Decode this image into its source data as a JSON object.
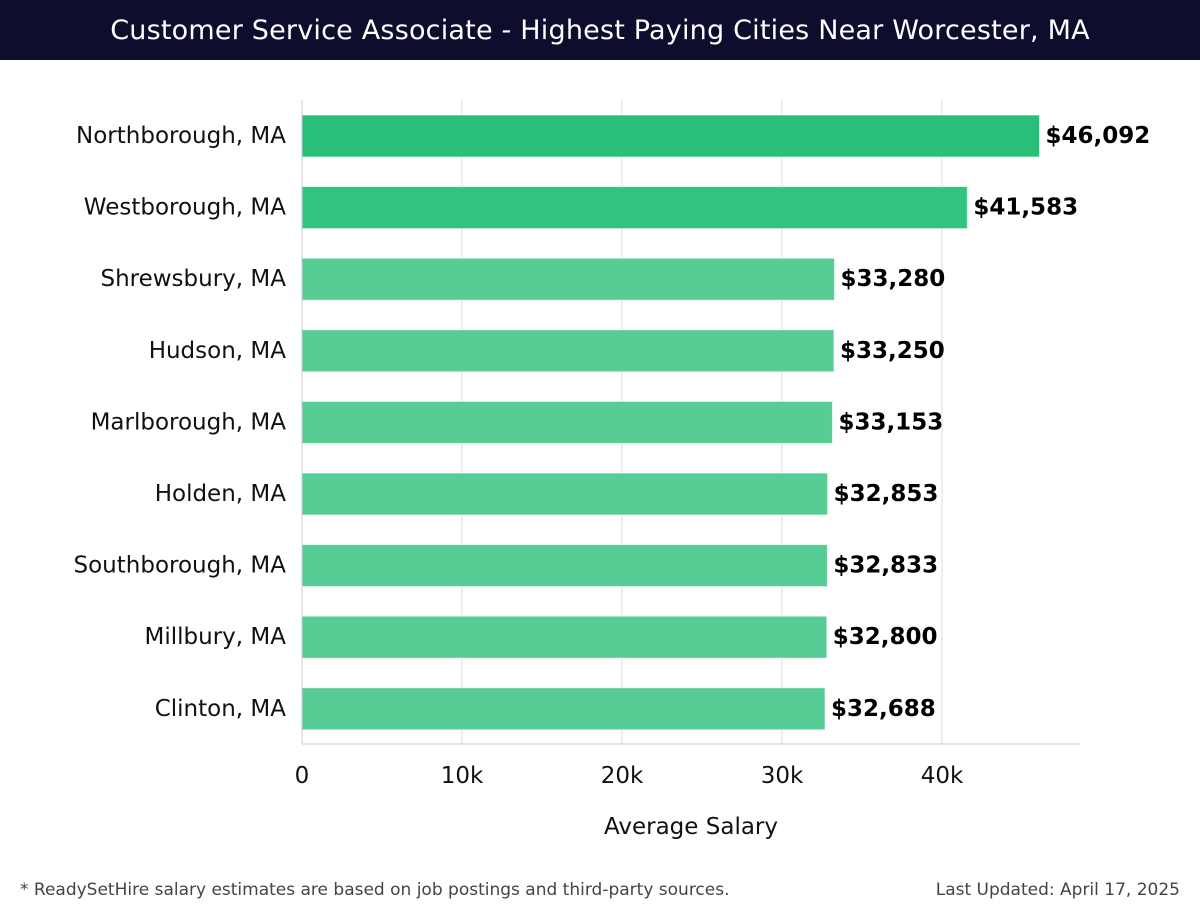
{
  "header": {
    "title": "Customer Service Associate - Highest Paying Cities Near Worcester, MA"
  },
  "footer": {
    "note": "* ReadySetHire salary estimates are based on job postings and third-party sources.",
    "updated": "Last Updated: April 17, 2025"
  },
  "colors": {
    "header_bg": "#0d0d2e",
    "bar_top": "#2abf78",
    "bar_second": "#33c380",
    "bar_rest": "#58cc95",
    "grid": "#dddddd"
  },
  "chart_data": {
    "type": "bar",
    "orientation": "horizontal",
    "categories": [
      "Northborough, MA",
      "Westborough, MA",
      "Shrewsbury, MA",
      "Hudson, MA",
      "Marlborough, MA",
      "Holden, MA",
      "Southborough, MA",
      "Millbury, MA",
      "Clinton, MA"
    ],
    "values": [
      46092,
      41583,
      33280,
      33250,
      33153,
      32853,
      32833,
      32800,
      32688
    ],
    "data_labels": [
      "$46,092",
      "$41,583",
      "$33,280",
      "$33,250",
      "$33,153",
      "$32,853",
      "$32,833",
      "$32,800",
      "$32,688"
    ],
    "xlabel": "Average Salary",
    "ylabel": "",
    "title": "",
    "xlim": [
      0,
      48500
    ],
    "xticks": [
      0,
      10000,
      20000,
      30000,
      40000
    ],
    "xtick_labels": [
      "0",
      "10k",
      "20k",
      "30k",
      "40k"
    ],
    "grid": "vertical"
  }
}
